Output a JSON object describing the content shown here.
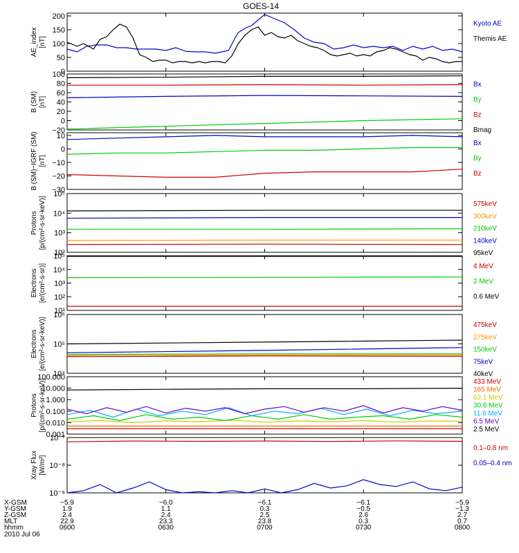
{
  "title": "GOES-14",
  "chart_data": [
    {
      "type": "line",
      "ylabel": "AE_index\n[nT]",
      "ylim": [
        0,
        210
      ],
      "yticks": [
        {
          "v": 0,
          "t": "0"
        },
        {
          "v": 50,
          "t": "50"
        },
        {
          "v": 100,
          "t": "100"
        },
        {
          "v": 150,
          "t": "150"
        },
        {
          "v": 200,
          "t": "200"
        }
      ],
      "series": [
        {
          "name": "Kyoto AE",
          "color": "#0000cc",
          "x": [
            0,
            3,
            6,
            9,
            12,
            15,
            18,
            21,
            24,
            27,
            30,
            33,
            36,
            39,
            42,
            45,
            47,
            49,
            51,
            52,
            54,
            56,
            58,
            60,
            63,
            66,
            69,
            72,
            75,
            78,
            81,
            84,
            87,
            90,
            93,
            96,
            99,
            102,
            105,
            108,
            111,
            114,
            117,
            120
          ],
          "values": [
            80,
            70,
            90,
            95,
            95,
            85,
            85,
            80,
            80,
            80,
            75,
            85,
            72,
            70,
            70,
            65,
            70,
            75,
            120,
            140,
            155,
            165,
            185,
            205,
            190,
            175,
            150,
            120,
            105,
            100,
            80,
            85,
            95,
            85,
            90,
            85,
            90,
            75,
            90,
            80,
            90,
            75,
            80,
            70
          ]
        },
        {
          "name": "Themis AE",
          "color": "#000000",
          "x": [
            0,
            3,
            5,
            8,
            10,
            12,
            14,
            16,
            18,
            20,
            22,
            24,
            26,
            28,
            30,
            32,
            34,
            36,
            38,
            40,
            42,
            44,
            46,
            48,
            50,
            52,
            54,
            56,
            58,
            60,
            62,
            64,
            66,
            68,
            70,
            72,
            74,
            76,
            78,
            80,
            82,
            84,
            86,
            88,
            90,
            92,
            94,
            96,
            98,
            100,
            102,
            104,
            106,
            108,
            110,
            112,
            114,
            116,
            118,
            120
          ],
          "values": [
            105,
            90,
            100,
            80,
            115,
            125,
            150,
            170,
            160,
            120,
            60,
            50,
            35,
            40,
            40,
            30,
            35,
            35,
            30,
            35,
            30,
            35,
            35,
            30,
            55,
            100,
            130,
            150,
            160,
            130,
            140,
            125,
            120,
            130,
            110,
            100,
            90,
            85,
            75,
            60,
            55,
            60,
            65,
            55,
            60,
            55,
            70,
            75,
            85,
            80,
            70,
            60,
            55,
            40,
            50,
            45,
            35,
            30,
            35,
            35
          ]
        }
      ]
    },
    {
      "type": "line",
      "ylabel": "B (SM)\n[nT]",
      "ylim": [
        -20,
        100
      ],
      "yticks": [
        {
          "v": -20,
          "t": "−20"
        },
        {
          "v": 0,
          "t": "0"
        },
        {
          "v": 20,
          "t": "20"
        },
        {
          "v": 40,
          "t": "40"
        },
        {
          "v": 60,
          "t": "60"
        },
        {
          "v": 80,
          "t": "80"
        },
        {
          "v": 100,
          "t": "100"
        }
      ],
      "series": [
        {
          "name": "Bx",
          "color": "#0000cc",
          "x": [
            0,
            30,
            60,
            90,
            120
          ],
          "values": [
            49,
            52,
            54,
            53,
            52
          ]
        },
        {
          "name": "By",
          "color": "#00cc00",
          "x": [
            0,
            30,
            60,
            90,
            120
          ],
          "values": [
            -18,
            -12,
            -6,
            0,
            4
          ]
        },
        {
          "name": "Bz",
          "color": "#cc0000",
          "x": [
            0,
            30,
            60,
            90,
            120
          ],
          "values": [
            76,
            76,
            77,
            76,
            77
          ]
        },
        {
          "name": "Bmag",
          "color": "#000000",
          "x": [
            0,
            30,
            60,
            90,
            120
          ],
          "values": [
            92,
            93,
            95,
            95,
            96
          ]
        }
      ]
    },
    {
      "type": "line",
      "ylabel": "B (SM)−IGRF (SM)\n[nT]",
      "ylim": [
        -30,
        12
      ],
      "yticks": [
        {
          "v": -30,
          "t": "−30"
        },
        {
          "v": -20,
          "t": "−20"
        },
        {
          "v": -10,
          "t": "−10"
        },
        {
          "v": 0,
          "t": "0"
        },
        {
          "v": 10,
          "t": "10"
        }
      ],
      "series": [
        {
          "name": "Bx",
          "color": "#0000cc",
          "x": [
            0,
            15,
            30,
            45,
            60,
            75,
            90,
            105,
            120
          ],
          "values": [
            7,
            8,
            9,
            10,
            9,
            9,
            9,
            10,
            9
          ]
        },
        {
          "name": "By",
          "color": "#00cc00",
          "x": [
            0,
            15,
            30,
            45,
            60,
            75,
            90,
            105,
            120
          ],
          "values": [
            -4,
            -3,
            -3,
            -2,
            -1,
            -1,
            0,
            1,
            1
          ]
        },
        {
          "name": "Bz",
          "color": "#cc0000",
          "x": [
            0,
            15,
            30,
            45,
            60,
            75,
            90,
            105,
            120
          ],
          "values": [
            -19,
            -20,
            -21,
            -21,
            -18,
            -17,
            -17,
            -17,
            -15
          ]
        }
      ]
    },
    {
      "type": "line",
      "log": true,
      "ylabel": "Protons\n[p/(cm²-s-sr-keV)]",
      "ylim": [
        100,
        100000
      ],
      "yticks": [
        {
          "v": 100,
          "t": "10²"
        },
        {
          "v": 1000,
          "t": "10³"
        },
        {
          "v": 10000,
          "t": "10⁴"
        },
        {
          "v": 100000,
          "t": "10⁵"
        }
      ],
      "series": [
        {
          "name": "575keV",
          "color": "#cc0000",
          "x": [
            0,
            60,
            120
          ],
          "values": [
            250,
            260,
            250
          ]
        },
        {
          "name": "300keV",
          "color": "#ff9900",
          "x": [
            0,
            60,
            120
          ],
          "values": [
            400,
            420,
            420
          ]
        },
        {
          "name": "210keV",
          "color": "#00cc00",
          "x": [
            0,
            60,
            120
          ],
          "values": [
            1500,
            1500,
            1600
          ]
        },
        {
          "name": "140keV",
          "color": "#0000cc",
          "x": [
            0,
            60,
            120
          ],
          "values": [
            5500,
            6000,
            6000
          ]
        },
        {
          "name": "95keV",
          "color": "#000000",
          "x": [
            0,
            60,
            120
          ],
          "values": [
            13000,
            14000,
            14000
          ]
        }
      ]
    },
    {
      "type": "line",
      "log": true,
      "ylabel": "Electrons\n[e/(cm²-s-sr)]",
      "ylim": [
        10,
        100000
      ],
      "yticks": [
        {
          "v": 10,
          "t": "10¹"
        },
        {
          "v": 100,
          "t": "10²"
        },
        {
          "v": 1000,
          "t": "10³"
        },
        {
          "v": 10000,
          "t": "10⁴"
        },
        {
          "v": 100000,
          "t": "10⁵"
        }
      ],
      "series": [
        {
          "name": "4 MeV",
          "color": "#cc0000",
          "x": [
            0,
            60,
            120
          ],
          "values": [
            20,
            20,
            20
          ]
        },
        {
          "name": "2 MeV",
          "color": "#00cc00",
          "x": [
            0,
            60,
            120
          ],
          "values": [
            2500,
            2600,
            2800
          ]
        },
        {
          "name": "0.6 MeV",
          "color": "#000000",
          "x": [
            0,
            60,
            120
          ],
          "values": [
            90000,
            90000,
            90000
          ]
        }
      ]
    },
    {
      "type": "line",
      "log": true,
      "ylabel": "Electrons\n[e/(cm²-s-sr-keV)]",
      "ylim": [
        10000,
        1000000
      ],
      "yticks": [
        {
          "v": 10000,
          "t": "10⁴"
        },
        {
          "v": 100000,
          "t": "10⁵"
        },
        {
          "v": 1000000,
          "t": "10⁶"
        }
      ],
      "series": [
        {
          "name": "475keV",
          "color": "#cc0000",
          "x": [
            0,
            60,
            120
          ],
          "values": [
            37000,
            39000,
            38000
          ]
        },
        {
          "name": "275keV",
          "color": "#ff9900",
          "x": [
            0,
            60,
            120
          ],
          "values": [
            40000,
            42000,
            42000
          ]
        },
        {
          "name": "150keV",
          "color": "#00cc00",
          "x": [
            0,
            60,
            120
          ],
          "values": [
            44000,
            46000,
            46000
          ]
        },
        {
          "name": "75keV",
          "color": "#0000cc",
          "x": [
            0,
            60,
            120
          ],
          "values": [
            50000,
            60000,
            75000
          ]
        },
        {
          "name": "40keV",
          "color": "#000000",
          "x": [
            0,
            60,
            120
          ],
          "values": [
            100000,
            115000,
            135000
          ]
        }
      ]
    },
    {
      "type": "line",
      "log": true,
      "ylabel": "Protons\n[p/(cm²-s-sr-keV)]",
      "ylim": [
        0.001,
        100
      ],
      "yticks": [
        {
          "v": 0.001,
          "t": "0.001"
        },
        {
          "v": 0.01,
          "t": "0.010"
        },
        {
          "v": 0.1,
          "t": "0.100"
        },
        {
          "v": 1,
          "t": "1.000"
        },
        {
          "v": 10,
          "t": "10.000"
        },
        {
          "v": 100,
          "t": "100.000"
        }
      ],
      "series": [
        {
          "name": "433 MeV",
          "color": "#cc0000",
          "x": [
            0,
            60,
            120
          ],
          "values": [
            0.003,
            0.003,
            0.003
          ]
        },
        {
          "name": "165 MeV",
          "color": "#ff6600",
          "x": [
            0,
            60,
            120
          ],
          "values": [
            0.005,
            0.005,
            0.005
          ]
        },
        {
          "name": "63.1 MeV",
          "color": "#cccc00",
          "x": [
            0,
            10,
            20,
            30,
            40,
            50,
            60,
            70,
            80,
            90,
            100,
            110,
            120
          ],
          "values": [
            0.012,
            0.015,
            0.01,
            0.014,
            0.012,
            0.016,
            0.011,
            0.014,
            0.012,
            0.015,
            0.011,
            0.014,
            0.013
          ]
        },
        {
          "name": "30.6 MeV",
          "color": "#00cc00",
          "x": [
            0,
            8,
            16,
            24,
            32,
            40,
            48,
            56,
            64,
            72,
            80,
            88,
            96,
            104,
            112,
            120
          ],
          "values": [
            0.02,
            0.04,
            0.015,
            0.05,
            0.02,
            0.03,
            0.015,
            0.04,
            0.02,
            0.05,
            0.02,
            0.03,
            0.04,
            0.02,
            0.05,
            0.03
          ]
        },
        {
          "name": "11.6 MeV",
          "color": "#00aaff",
          "x": [
            0,
            7,
            14,
            21,
            28,
            35,
            42,
            49,
            56,
            63,
            70,
            77,
            84,
            91,
            98,
            105,
            112,
            120
          ],
          "values": [
            0.05,
            0.12,
            0.03,
            0.15,
            0.04,
            0.1,
            0.05,
            0.2,
            0.04,
            0.1,
            0.06,
            0.18,
            0.05,
            0.15,
            0.04,
            0.12,
            0.06,
            0.1
          ]
        },
        {
          "name": "6.5 MeV",
          "color": "#6600cc",
          "x": [
            0,
            6,
            12,
            18,
            24,
            30,
            36,
            42,
            48,
            54,
            60,
            66,
            72,
            78,
            84,
            90,
            96,
            102,
            108,
            114,
            120
          ],
          "values": [
            0.15,
            0.06,
            0.2,
            0.08,
            0.25,
            0.07,
            0.18,
            0.1,
            0.2,
            0.06,
            0.15,
            0.25,
            0.08,
            0.2,
            0.1,
            0.3,
            0.07,
            0.2,
            0.1,
            0.25,
            0.12
          ]
        },
        {
          "name": "2.5 MeV",
          "color": "#000000",
          "x": [
            0,
            30,
            60,
            90,
            120
          ],
          "values": [
            7,
            8,
            9,
            9,
            10
          ]
        }
      ]
    },
    {
      "type": "line",
      "log": true,
      "ylabel": "Xray Flux\n[W/m²]",
      "ylim": [
        1e-09,
        1e-07
      ],
      "yticks": [
        {
          "v": 1e-09,
          "t": "10⁻⁹"
        },
        {
          "v": 1e-08,
          "t": "10⁻⁸"
        },
        {
          "v": 1e-07,
          "t": "10⁻⁷"
        }
      ],
      "series": [
        {
          "name": "0.1–0.8 nm",
          "color": "#cc0000",
          "x": [
            0,
            20,
            40,
            60,
            80,
            100,
            120
          ],
          "values": [
            7e-08,
            7.5e-08,
            7.3e-08,
            7.5e-08,
            7.2e-08,
            7.6e-08,
            7.3e-08
          ]
        },
        {
          "name": "0.05–0.4 nm",
          "color": "#0000cc",
          "x": [
            0,
            5,
            10,
            15,
            20,
            25,
            30,
            35,
            40,
            45,
            50,
            55,
            60,
            65,
            70,
            75,
            80,
            85,
            90,
            95,
            100,
            105,
            110,
            115,
            120
          ],
          "values": [
            1e-09,
            1.2e-09,
            2e-09,
            1e-09,
            1.5e-09,
            2.5e-09,
            1.3e-09,
            1e-09,
            1.1e-09,
            1e-09,
            1.2e-09,
            1e-09,
            1.4e-09,
            1e-09,
            1.3e-09,
            2.2e-09,
            1.5e-09,
            1.8e-09,
            3e-09,
            2e-09,
            1.7e-09,
            2.5e-09,
            1.4e-09,
            1.2e-09,
            1.6e-09
          ]
        }
      ]
    }
  ],
  "x_axis": {
    "range": [
      0,
      120
    ],
    "tick_minutes": [
      0,
      30,
      60,
      90,
      120
    ],
    "rows": [
      {
        "label": "X-GSM",
        "values": [
          "−5.9",
          "−6.0",
          "−6.1",
          "−6.1",
          "−5.9"
        ]
      },
      {
        "label": "Y-GSM",
        "values": [
          "1.9",
          "1.1",
          "0.3",
          "−0.5",
          "−1.3"
        ]
      },
      {
        "label": "Z-GSM",
        "values": [
          "2.4",
          "2.4",
          "2.5",
          "2.6",
          "2.7"
        ]
      },
      {
        "label": "MLT",
        "values": [
          "22.9",
          "23.3",
          "23.8",
          "0.3",
          "0.7"
        ]
      },
      {
        "label": "hhmm",
        "values": [
          "0600",
          "0630",
          "0700",
          "0730",
          "0800"
        ]
      }
    ],
    "date": "2010 Jul 06"
  }
}
